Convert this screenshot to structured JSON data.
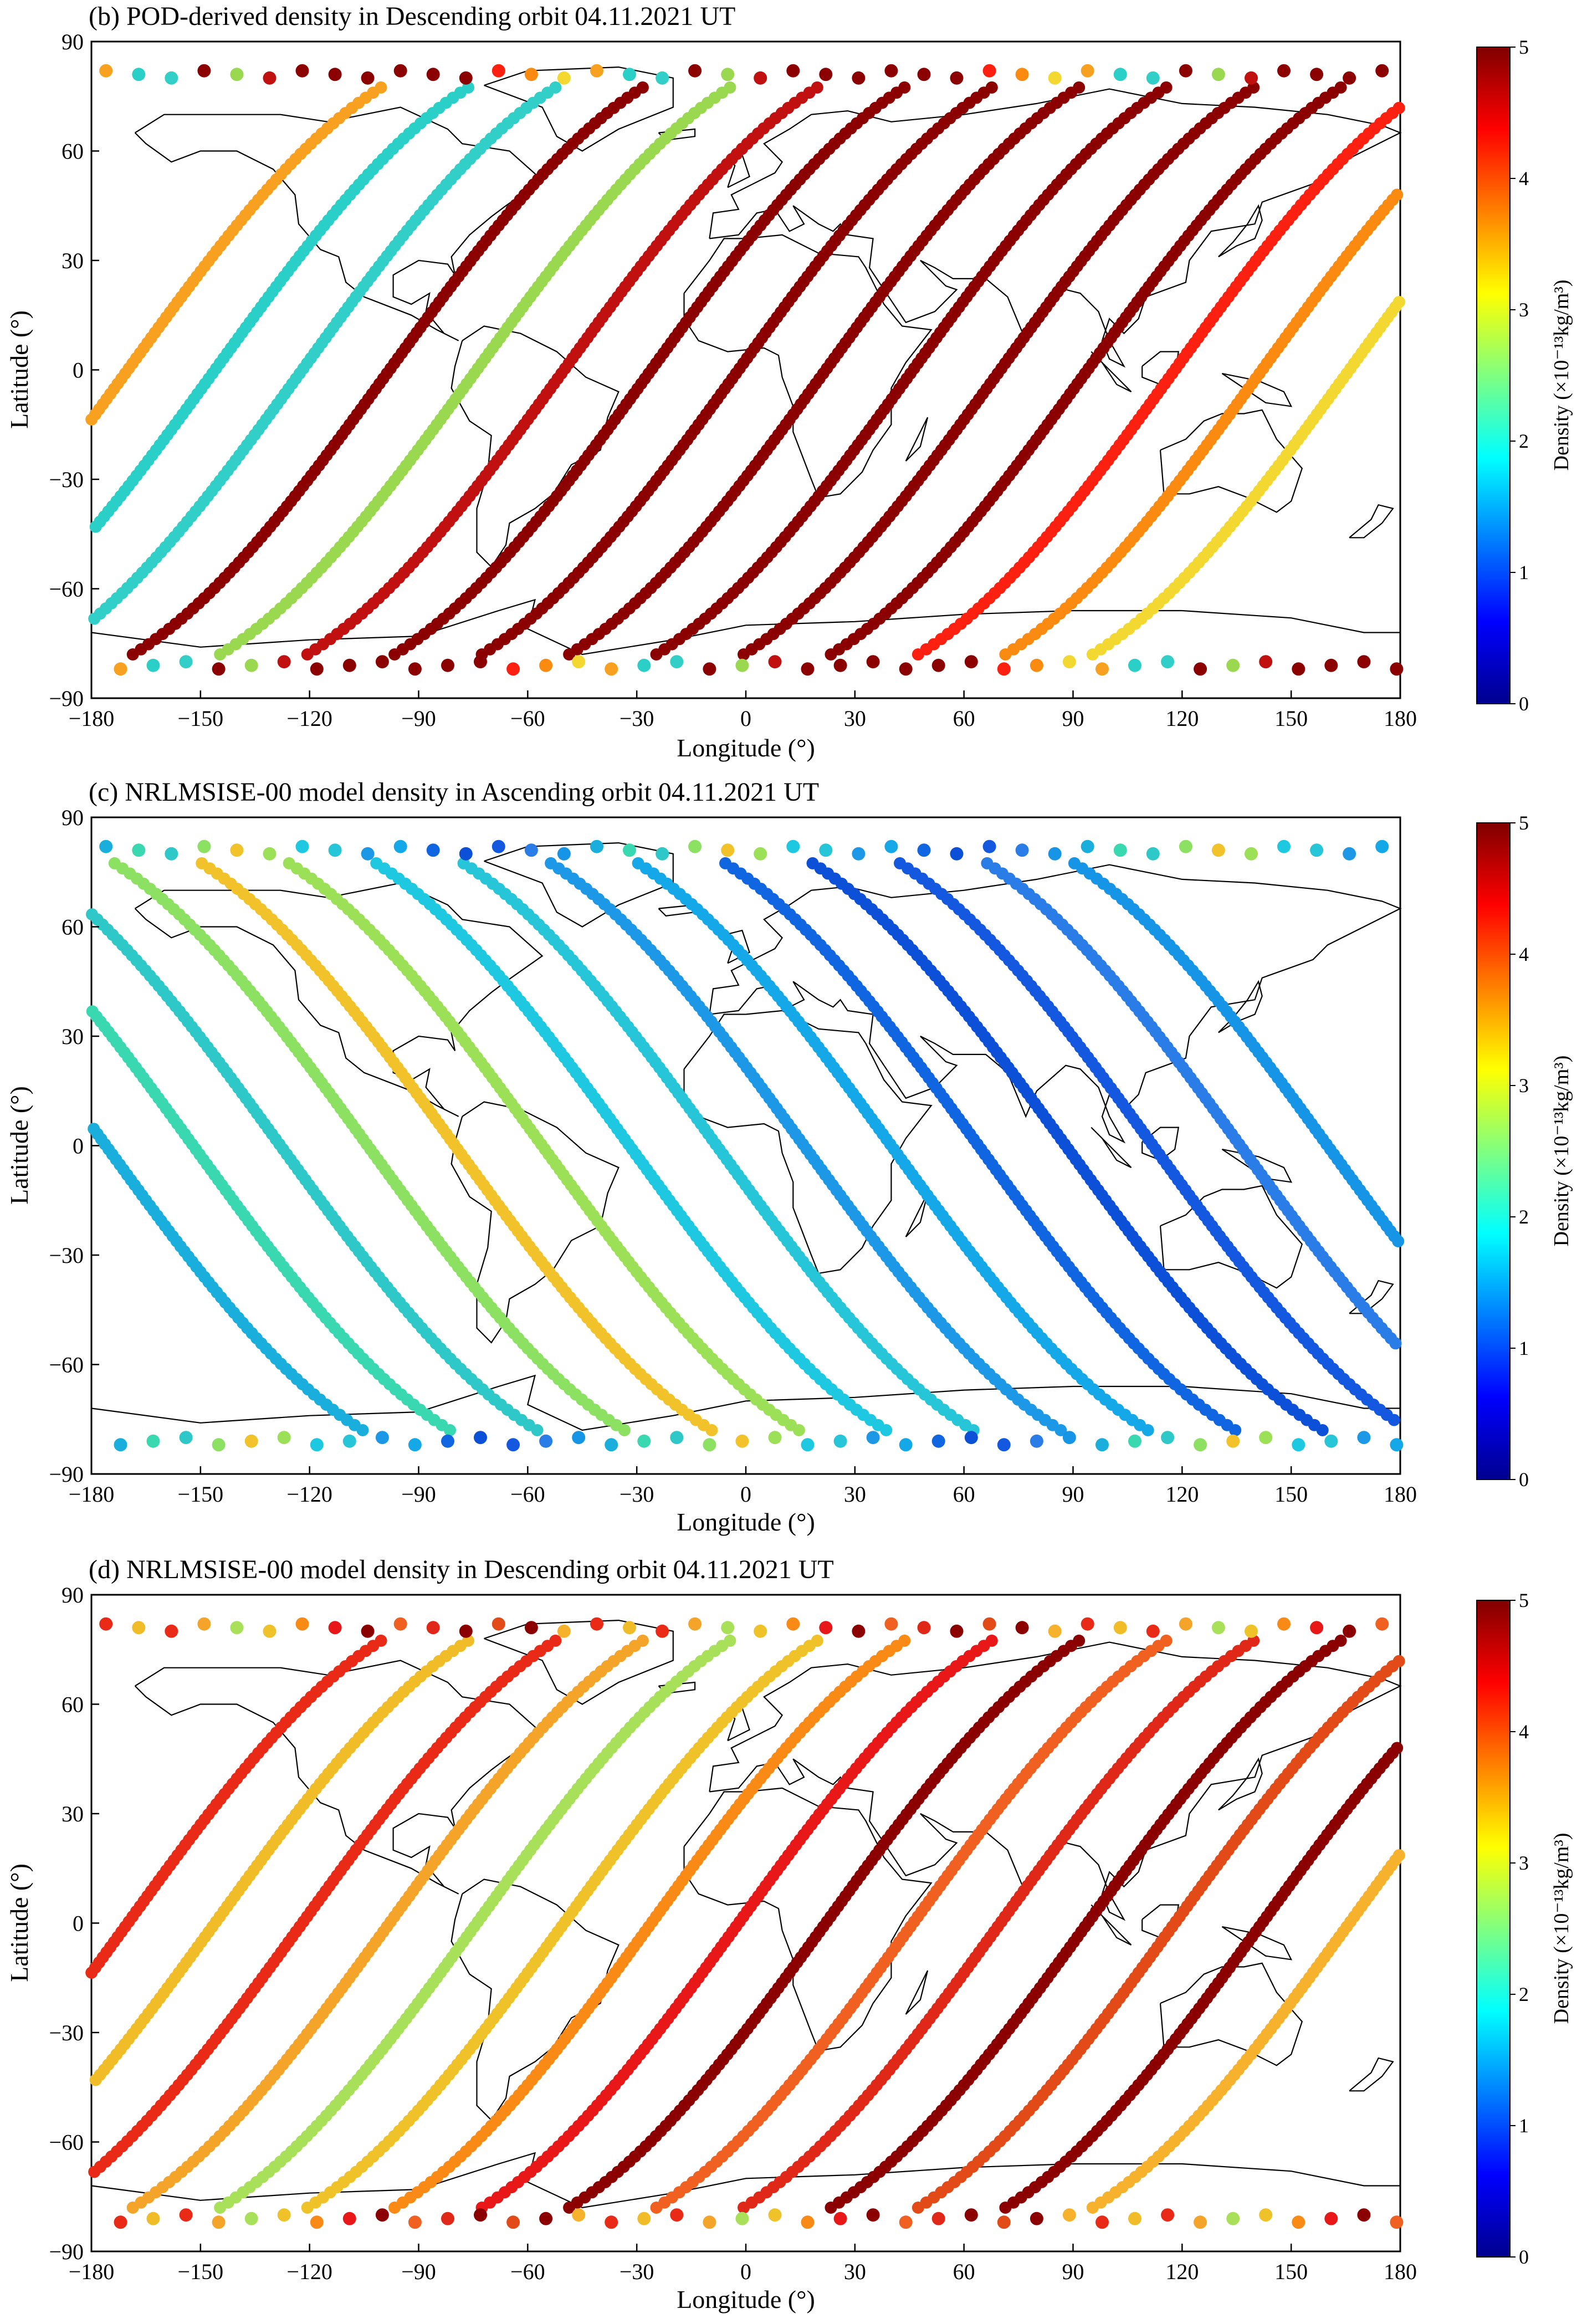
{
  "chart_data": [
    {
      "panel_id": "b",
      "type": "scatter",
      "title": "(b)  POD-derived density in Descending orbit 04.11.2021 UT",
      "xlabel": "Longitude (°)",
      "ylabel": "Latitude (°)",
      "xlim": [
        -180,
        180
      ],
      "ylim": [
        -90,
        90
      ],
      "xticks": [
        -180,
        -150,
        -120,
        -90,
        -60,
        -30,
        0,
        30,
        60,
        90,
        120,
        150,
        180
      ],
      "yticks": [
        90,
        60,
        30,
        0,
        -30,
        -60,
        -90
      ],
      "colorbar": {
        "label": "Density (×10⁻¹³kg/m³)",
        "ticks": [
          0,
          1,
          2,
          3,
          4,
          5
        ],
        "range": [
          0,
          5
        ],
        "colormap": "jet"
      },
      "grid": false,
      "background": "world coastline map",
      "orbit_direction": "descending",
      "track_equator_longitudes": [
        -170,
        -146,
        -122,
        -98,
        -74,
        -50,
        -26,
        -2,
        22,
        46,
        70,
        94,
        118,
        142,
        166
      ],
      "series_colors": [
        "#f8a020",
        "#2ad0c8",
        "#32cfc8",
        "#8b0000",
        "#9ad850",
        "#c01010",
        "#8b0000",
        "#8b0000",
        "#8b0000",
        "#8b0000",
        "#8b0000",
        "#8b0000",
        "#fb2010",
        "#fa8a10",
        "#f2d830"
      ]
    },
    {
      "panel_id": "c",
      "type": "scatter",
      "title": "(c)  NRLMSISE-00 model density in Ascending orbit 04.11.2021 UT",
      "xlabel": "Longitude (°)",
      "ylabel": "Latitude (°)",
      "xlim": [
        -180,
        180
      ],
      "ylim": [
        -90,
        90
      ],
      "xticks": [
        -180,
        -150,
        -120,
        -90,
        -60,
        -30,
        0,
        30,
        60,
        90,
        120,
        150,
        180
      ],
      "yticks": [
        90,
        60,
        30,
        0,
        -30,
        -60,
        -90
      ],
      "colorbar": {
        "label": "Density (×10⁻¹³kg/m³)",
        "ticks": [
          0,
          1,
          2,
          3,
          4,
          5
        ],
        "range": [
          0,
          5
        ],
        "colormap": "jet"
      },
      "grid": false,
      "background": "world coastline map",
      "orbit_direction": "ascending",
      "track_equator_longitudes": [
        -176,
        -152,
        -128,
        -104,
        -80,
        -56,
        -32,
        -8,
        16,
        40,
        64,
        88,
        112,
        136,
        160
      ],
      "series_colors": [
        "#1aaedc",
        "#3ad8b0",
        "#2ec8c8",
        "#8ce062",
        "#f2c22a",
        "#9ce058",
        "#1ec8e0",
        "#26c6d8",
        "#1c98e6",
        "#14a8e8",
        "#1066e0",
        "#0c50d8",
        "#1458e0",
        "#2a7ce6",
        "#1694e6"
      ]
    },
    {
      "panel_id": "d",
      "type": "scatter",
      "title": "(d)  NRLMSISE-00 model density in Descending orbit 04.11.2021 UT",
      "xlabel": "Longitude (°)",
      "ylabel": "Latitude (°)",
      "xlim": [
        -180,
        180
      ],
      "ylim": [
        -90,
        90
      ],
      "xticks": [
        -180,
        -150,
        -120,
        -90,
        -60,
        -30,
        0,
        30,
        60,
        90,
        120,
        150,
        180
      ],
      "yticks": [
        90,
        60,
        30,
        0,
        -30,
        -60,
        -90
      ],
      "colorbar": {
        "label": "Density (×10⁻¹³kg/m³)",
        "ticks": [
          0,
          1,
          2,
          3,
          4,
          5
        ],
        "range": [
          0,
          5
        ],
        "colormap": "jet"
      },
      "grid": false,
      "background": "world coastline map",
      "orbit_direction": "descending",
      "track_equator_longitudes": [
        -170,
        -146,
        -122,
        -98,
        -74,
        -50,
        -26,
        -2,
        22,
        46,
        70,
        94,
        118,
        142,
        166
      ],
      "series_colors": [
        "#e82a16",
        "#f0bc28",
        "#e82a16",
        "#f5a42a",
        "#a8e05a",
        "#f0c22a",
        "#fa8a16",
        "#e81818",
        "#8b0000",
        "#f06020",
        "#e02818",
        "#8b0000",
        "#e24a18",
        "#8b0000",
        "#f6b22c"
      ]
    }
  ]
}
